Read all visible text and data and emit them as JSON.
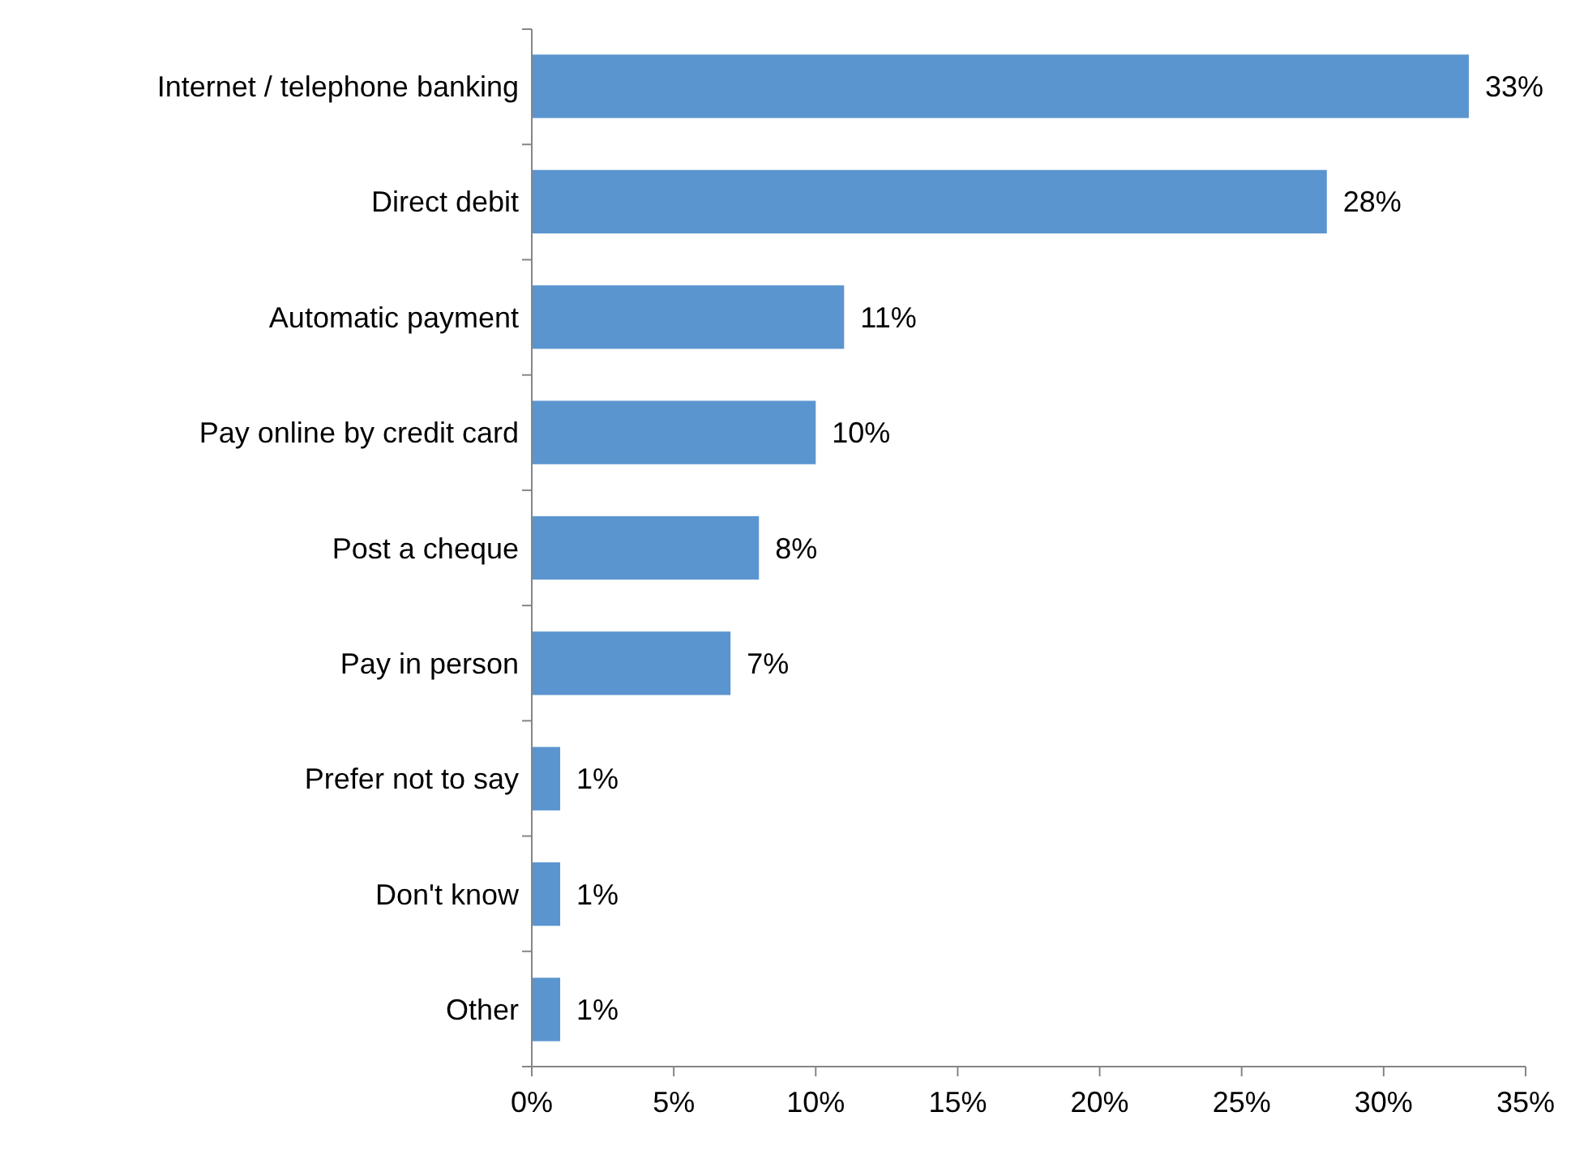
{
  "chart_data": {
    "type": "bar",
    "orientation": "horizontal",
    "categories": [
      "Internet / telephone banking",
      "Direct debit",
      "Automatic payment",
      "Pay online by credit card",
      "Post a cheque",
      "Pay in person",
      "Prefer not to say",
      "Don't know",
      "Other"
    ],
    "values": [
      33,
      28,
      11,
      10,
      8,
      7,
      1,
      1,
      1
    ],
    "color": "#5b95cf",
    "xlim": [
      0,
      35
    ],
    "xticks": [
      {
        "value": 0,
        "label": "0%"
      },
      {
        "value": 5,
        "label": "5%"
      },
      {
        "value": 10,
        "label": "10%"
      },
      {
        "value": 15,
        "label": "15%"
      },
      {
        "value": 20,
        "label": "20%"
      },
      {
        "value": 25,
        "label": "25%"
      },
      {
        "value": 30,
        "label": "30%"
      },
      {
        "value": 35,
        "label": "35%"
      }
    ],
    "value_labels": [
      "33%",
      "28%",
      "11%",
      "10%",
      "8%",
      "7%",
      "1%",
      "1%",
      "1%"
    ],
    "grid": false
  }
}
